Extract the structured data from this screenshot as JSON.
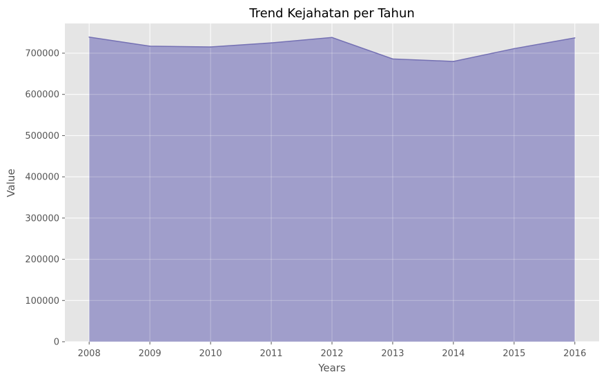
{
  "chart_data": {
    "type": "area",
    "title": "Trend Kejahatan per Tahun",
    "xlabel": "Years",
    "ylabel": "Value",
    "x": [
      2008,
      2009,
      2010,
      2011,
      2012,
      2013,
      2014,
      2015,
      2016
    ],
    "y": [
      739000,
      717000,
      715000,
      725000,
      738000,
      686000,
      680000,
      711000,
      737000
    ],
    "xlim": [
      2007.6,
      2016.4
    ],
    "ylim": [
      0,
      772000
    ],
    "yticks": [
      0,
      100000,
      200000,
      300000,
      400000,
      500000,
      600000,
      700000
    ],
    "grid": true,
    "style": {
      "plot_background": "#e5e5e5",
      "fill_color": "#a09ecb",
      "line_color": "#7470b3",
      "grid_color": "#ffffff"
    }
  }
}
